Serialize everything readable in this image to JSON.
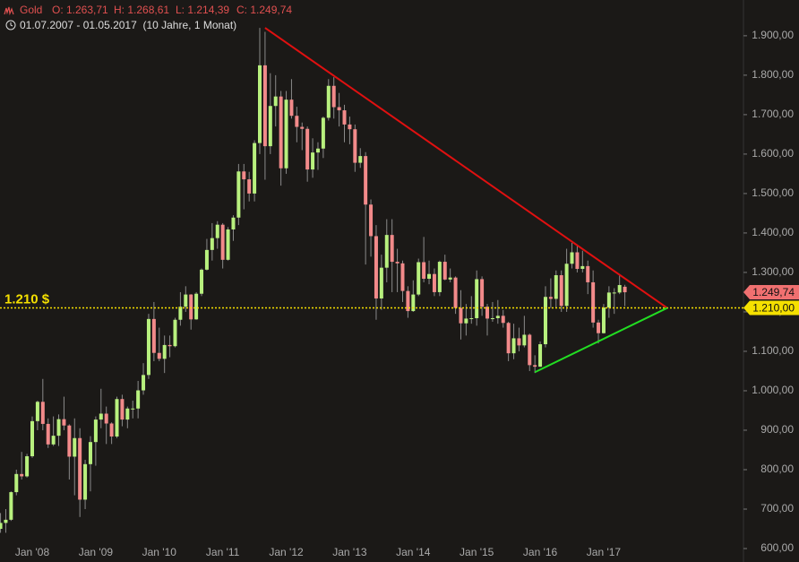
{
  "chart_data": {
    "type": "candlestick",
    "title": "Gold",
    "header_values": [
      "O: 1.263,71",
      "H: 1.268,61",
      "L: 1.214,39",
      "C: 1.249,74"
    ],
    "subtitle": "01.07.2007 - 01.05.2017  (10 Jahre, 1 Monat)",
    "up_color": "#b8f07e",
    "down_color": "#f28a8a",
    "ylim": [
      600,
      1927
    ],
    "yticks": [
      {
        "value": 600,
        "label": "600,00"
      },
      {
        "value": 700,
        "label": "700,00"
      },
      {
        "value": 800,
        "label": "800,00"
      },
      {
        "value": 900,
        "label": "900,00"
      },
      {
        "value": 1000,
        "label": "1.000,00"
      },
      {
        "value": 1100,
        "label": "1.100,00"
      },
      {
        "value": 1200,
        "label": "1.200,00"
      },
      {
        "value": 1300,
        "label": "1.300,00"
      },
      {
        "value": 1400,
        "label": "1.400,00"
      },
      {
        "value": 1500,
        "label": "1.500,00"
      },
      {
        "value": 1600,
        "label": "1.600,00"
      },
      {
        "value": 1700,
        "label": "1.700,00"
      },
      {
        "value": 1800,
        "label": "1.800,00"
      },
      {
        "value": 1900,
        "label": "1.900,00"
      }
    ],
    "categories": [
      null,
      null,
      null,
      null,
      null,
      null,
      "Jan '08",
      null,
      null,
      null,
      null,
      null,
      null,
      null,
      null,
      null,
      null,
      null,
      "Jan '09",
      null,
      null,
      null,
      null,
      null,
      null,
      null,
      null,
      null,
      null,
      null,
      "Jan '10",
      null,
      null,
      null,
      null,
      null,
      null,
      null,
      null,
      null,
      null,
      null,
      "Jan '11",
      null,
      null,
      null,
      null,
      null,
      null,
      null,
      null,
      null,
      null,
      null,
      "Jan '12",
      null,
      null,
      null,
      null,
      null,
      null,
      null,
      null,
      null,
      null,
      null,
      "Jan '13",
      null,
      null,
      null,
      null,
      null,
      null,
      null,
      null,
      null,
      null,
      null,
      "Jan '14",
      null,
      null,
      null,
      null,
      null,
      null,
      null,
      null,
      null,
      null,
      null,
      "Jan '15",
      null,
      null,
      null,
      null,
      null,
      null,
      null,
      null,
      null,
      null,
      null,
      "Jan '16",
      null,
      null,
      null,
      null,
      null,
      null,
      null,
      null,
      null,
      null,
      null,
      "Jan '17",
      null,
      null,
      null,
      null
    ],
    "open": [
      650,
      665,
      673,
      743,
      789,
      783,
      834,
      923,
      972,
      916,
      864,
      886,
      928,
      912,
      833,
      880,
      724,
      814,
      870,
      927,
      942,
      917,
      884,
      979,
      927,
      955,
      955,
      1001,
      1040,
      1182,
      1096,
      1081,
      1116,
      1113,
      1180,
      1213,
      1244,
      1181,
      1246,
      1307,
      1357,
      1387,
      1421,
      1332,
      1409,
      1439,
      1556,
      1536,
      1500,
      1628,
      1825,
      1620,
      1722,
      1746,
      1564,
      1738,
      1697,
      1669,
      1664,
      1561,
      1604,
      1614,
      1692,
      1773,
      1719,
      1711,
      1675,
      1663,
      1578,
      1595,
      1472,
      1392,
      1234,
      1312,
      1395,
      1327,
      1323,
      1253,
      1202,
      1244,
      1326,
      1284,
      1296,
      1250,
      1327,
      1282,
      1287,
      1210,
      1171,
      1183,
      1184,
      1283,
      1213,
      1183,
      1184,
      1190,
      1172,
      1095,
      1133,
      1115,
      1142,
      1065,
      1061,
      1118,
      1238,
      1233,
      1293,
      1215,
      1322,
      1351,
      1309,
      1316,
      1275,
      1173,
      1146,
      1211,
      1249,
      1249,
      1263.71
    ],
    "high": [
      690,
      700,
      745,
      800,
      845,
      840,
      935,
      975,
      1030,
      930,
      935,
      940,
      985,
      915,
      930,
      905,
      825,
      885,
      935,
      1005,
      960,
      920,
      985,
      990,
      960,
      975,
      1025,
      1070,
      1195,
      1225,
      1160,
      1140,
      1140,
      1185,
      1250,
      1265,
      1245,
      1250,
      1310,
      1385,
      1425,
      1430,
      1425,
      1415,
      1445,
      1575,
      1575,
      1555,
      1635,
      1920,
      1910,
      1805,
      1800,
      1760,
      1760,
      1790,
      1720,
      1680,
      1670,
      1640,
      1630,
      1695,
      1790,
      1795,
      1755,
      1725,
      1695,
      1675,
      1615,
      1605,
      1485,
      1420,
      1345,
      1435,
      1435,
      1360,
      1330,
      1265,
      1280,
      1335,
      1390,
      1330,
      1310,
      1330,
      1345,
      1310,
      1290,
      1255,
      1220,
      1240,
      1305,
      1290,
      1220,
      1225,
      1230,
      1205,
      1175,
      1170,
      1160,
      1190,
      1145,
      1090,
      1125,
      1265,
      1285,
      1305,
      1305,
      1360,
      1375,
      1370,
      1355,
      1330,
      1305,
      1180,
      1220,
      1265,
      1260,
      1295,
      1268.61
    ],
    "low": [
      640,
      640,
      670,
      735,
      775,
      780,
      830,
      900,
      900,
      855,
      860,
      860,
      900,
      775,
      735,
      680,
      700,
      745,
      810,
      905,
      865,
      865,
      880,
      910,
      905,
      930,
      930,
      990,
      1030,
      1075,
      1075,
      1045,
      1085,
      1110,
      1165,
      1200,
      1155,
      1180,
      1240,
      1305,
      1330,
      1360,
      1310,
      1330,
      1380,
      1420,
      1460,
      1480,
      1480,
      1600,
      1535,
      1600,
      1670,
      1520,
      1550,
      1690,
      1630,
      1610,
      1530,
      1540,
      1560,
      1590,
      1685,
      1690,
      1670,
      1630,
      1625,
      1555,
      1565,
      1320,
      1340,
      1180,
      1205,
      1275,
      1250,
      1250,
      1225,
      1185,
      1200,
      1240,
      1275,
      1270,
      1240,
      1240,
      1280,
      1275,
      1195,
      1130,
      1140,
      1170,
      1165,
      1190,
      1140,
      1175,
      1170,
      1160,
      1075,
      1080,
      1100,
      1110,
      1050,
      1045,
      1060,
      1110,
      1210,
      1210,
      1200,
      1200,
      1310,
      1300,
      1300,
      1245,
      1160,
      1120,
      1145,
      1185,
      1195,
      1245,
      1214.39
    ],
    "close": [
      665,
      673,
      743,
      789,
      783,
      834,
      923,
      972,
      916,
      864,
      886,
      928,
      912,
      833,
      880,
      724,
      814,
      870,
      927,
      942,
      917,
      884,
      979,
      927,
      955,
      955,
      1001,
      1040,
      1182,
      1096,
      1081,
      1116,
      1113,
      1180,
      1213,
      1244,
      1181,
      1246,
      1307,
      1357,
      1387,
      1421,
      1332,
      1409,
      1439,
      1556,
      1536,
      1500,
      1628,
      1825,
      1620,
      1722,
      1746,
      1564,
      1738,
      1697,
      1669,
      1664,
      1561,
      1604,
      1614,
      1692,
      1773,
      1719,
      1711,
      1675,
      1663,
      1578,
      1595,
      1472,
      1392,
      1234,
      1312,
      1395,
      1327,
      1323,
      1253,
      1202,
      1244,
      1326,
      1284,
      1296,
      1250,
      1327,
      1282,
      1287,
      1210,
      1171,
      1183,
      1184,
      1283,
      1213,
      1183,
      1184,
      1190,
      1172,
      1095,
      1133,
      1115,
      1142,
      1065,
      1061,
      1118,
      1238,
      1233,
      1293,
      1215,
      1322,
      1351,
      1309,
      1316,
      1275,
      1173,
      1146,
      1211,
      1249,
      1249,
      1268,
      1249.74
    ],
    "reference_line": {
      "value": 1210,
      "label": "1.210 $",
      "tag": "1.210,00",
      "color": "#f5e000"
    },
    "last_price": {
      "value": 1249.74,
      "tag": "1.249,74",
      "color": "#f07070"
    },
    "trendlines": [
      {
        "color": "#e01010",
        "x": [
          50,
          126
        ],
        "y": [
          1920,
          1210
        ]
      },
      {
        "color": "#22dd22",
        "x": [
          101,
          126
        ],
        "y": [
          1047,
          1210
        ]
      }
    ]
  }
}
